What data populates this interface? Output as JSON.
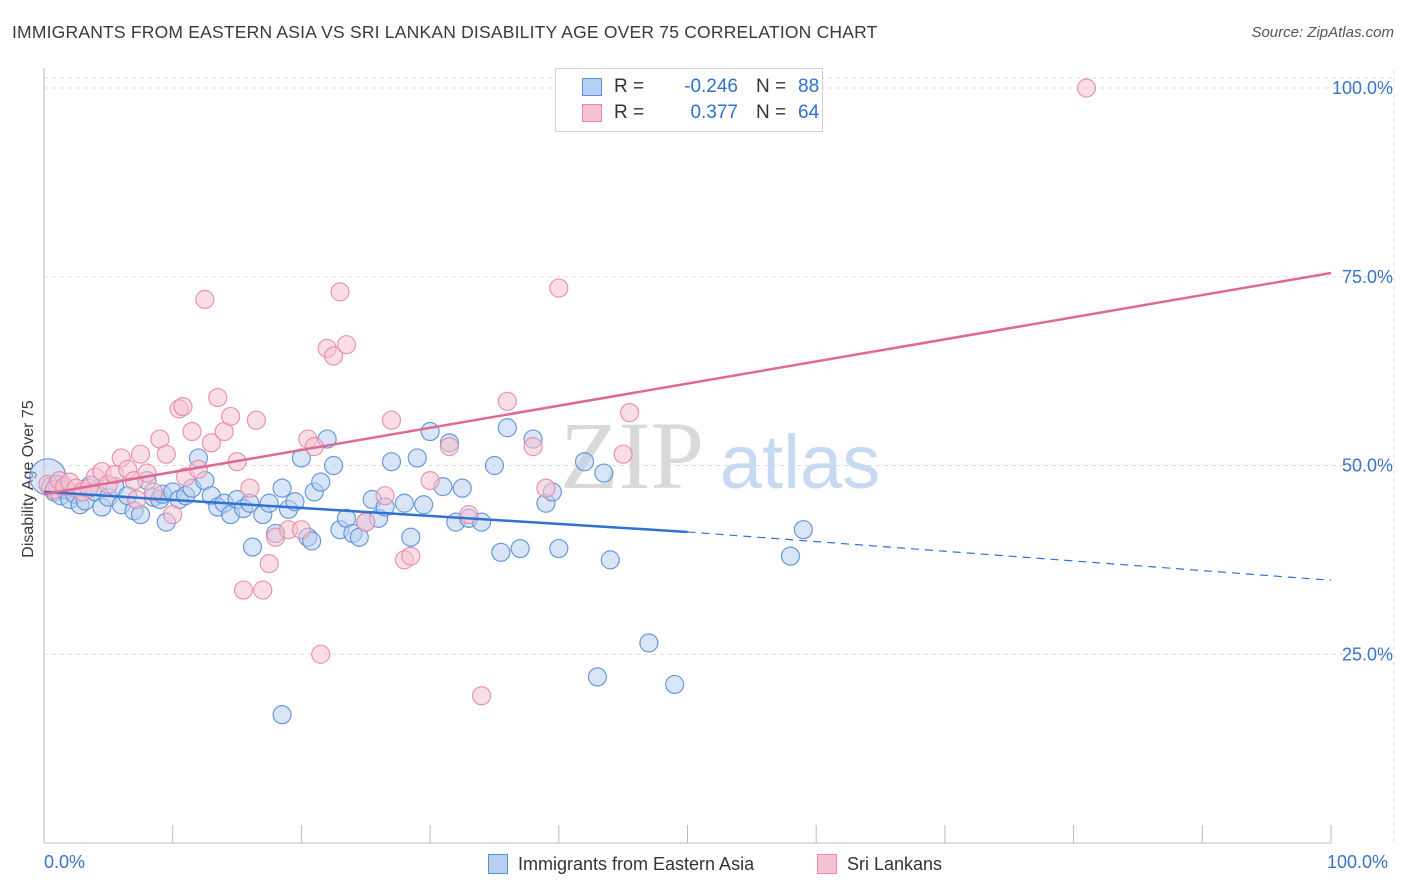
{
  "title": "IMMIGRANTS FROM EASTERN ASIA VS SRI LANKAN DISABILITY AGE OVER 75 CORRELATION CHART",
  "source": "Source: ZipAtlas.com",
  "watermark": {
    "zip": "ZIP",
    "atlas": "atlas"
  },
  "legend": {
    "r_label": "R =",
    "n_label": "N =",
    "series": [
      {
        "r": "-0.246",
        "n": "88"
      },
      {
        "r": "0.377",
        "n": "64"
      }
    ]
  },
  "bottom_legend": [
    "Immigrants from Eastern Asia",
    "Sri Lankans"
  ],
  "x_axis": {
    "min_label": "0.0%",
    "max_label": "100.0%"
  },
  "colors": {
    "blue": "#5b8fd6",
    "blue_fill": "#b8d0f0",
    "blue_line": "#2f72d4",
    "pink": "#e889a6",
    "pink_fill": "#f6c2d2",
    "pink_line": "#e0698f",
    "axis_text": "#3b73c8",
    "grid": "#dddddd"
  },
  "chart_data": {
    "type": "scatter",
    "title": "IMMIGRANTS FROM EASTERN ASIA VS SRI LANKAN DISABILITY AGE OVER 75 CORRELATION CHART",
    "xlabel": "",
    "ylabel": "Disability Age Over 75",
    "xlim": [
      0,
      100
    ],
    "ylim": [
      0,
      102
    ],
    "y_ticks": [
      25,
      50,
      75,
      100
    ],
    "y_tick_labels": [
      "25.0%",
      "50.0%",
      "75.0%",
      "100.0%"
    ],
    "series": [
      {
        "name": "Immigrants from Eastern Asia",
        "color": "blue",
        "points": [
          [
            0.3,
            48.5
          ],
          [
            0.5,
            47.2
          ],
          [
            0.8,
            46.5
          ],
          [
            1,
            47.5
          ],
          [
            1.3,
            46
          ],
          [
            1.6,
            46.8
          ],
          [
            2,
            45.5
          ],
          [
            2.4,
            46.2
          ],
          [
            2.8,
            44.8
          ],
          [
            3.2,
            45.3
          ],
          [
            3.6,
            47.4
          ],
          [
            4,
            46.5
          ],
          [
            4.5,
            44.5
          ],
          [
            5,
            45.8
          ],
          [
            5.5,
            47.2
          ],
          [
            6,
            44.8
          ],
          [
            6.5,
            46
          ],
          [
            7,
            44
          ],
          [
            7.5,
            43.5
          ],
          [
            8,
            48
          ],
          [
            8.5,
            45.8
          ],
          [
            9,
            45.5
          ],
          [
            9.2,
            46.2
          ],
          [
            9.5,
            42.5
          ],
          [
            10,
            46.5
          ],
          [
            10.5,
            45.5
          ],
          [
            11,
            46
          ],
          [
            11.5,
            47
          ],
          [
            12,
            51
          ],
          [
            12.5,
            48
          ],
          [
            13,
            46
          ],
          [
            13.5,
            44.5
          ],
          [
            14,
            45
          ],
          [
            14.5,
            43.5
          ],
          [
            15,
            45.5
          ],
          [
            15.5,
            44.3
          ],
          [
            16,
            45
          ],
          [
            16.2,
            39.2
          ],
          [
            17,
            43.5
          ],
          [
            17.5,
            45
          ],
          [
            18,
            41
          ],
          [
            18.5,
            47
          ],
          [
            19,
            44.2
          ],
          [
            19.5,
            45.2
          ],
          [
            20,
            51
          ],
          [
            21,
            46.5
          ],
          [
            21.5,
            47.8
          ],
          [
            22,
            53.5
          ],
          [
            22.5,
            50
          ],
          [
            23,
            41.5
          ],
          [
            23.5,
            43
          ],
          [
            24,
            41
          ],
          [
            24.5,
            40.5
          ],
          [
            25,
            42.5
          ],
          [
            25.5,
            45.5
          ],
          [
            26,
            43
          ],
          [
            26.5,
            44.5
          ],
          [
            27,
            50.5
          ],
          [
            28,
            45
          ],
          [
            28.5,
            40.5
          ],
          [
            29,
            51
          ],
          [
            29.5,
            44.8
          ],
          [
            30,
            54.5
          ],
          [
            31,
            47.2
          ],
          [
            31.5,
            53
          ],
          [
            32,
            42.5
          ],
          [
            32.5,
            47
          ],
          [
            33,
            43
          ],
          [
            34,
            42.5
          ],
          [
            35,
            50
          ],
          [
            35.5,
            38.5
          ],
          [
            36,
            55
          ],
          [
            37,
            39
          ],
          [
            38,
            53.5
          ],
          [
            39,
            45
          ],
          [
            39.5,
            46.5
          ],
          [
            40,
            39
          ],
          [
            42,
            50.5
          ],
          [
            43,
            22
          ],
          [
            43.5,
            49
          ],
          [
            44,
            37.5
          ],
          [
            47,
            26.5
          ],
          [
            49,
            21
          ],
          [
            58,
            38
          ],
          [
            59,
            41.5
          ],
          [
            18.5,
            17
          ],
          [
            20.5,
            40.5
          ],
          [
            20.8,
            40
          ]
        ]
      },
      {
        "name": "Sri Lankans",
        "color": "pink",
        "points": [
          [
            0.3,
            47.5
          ],
          [
            0.8,
            46.8
          ],
          [
            1.2,
            48
          ],
          [
            1.6,
            47.2
          ],
          [
            2,
            47.8
          ],
          [
            2.5,
            47
          ],
          [
            3,
            46.5
          ],
          [
            3.5,
            47
          ],
          [
            4,
            48.5
          ],
          [
            4.5,
            49.2
          ],
          [
            5,
            47.5
          ],
          [
            5.5,
            48.8
          ],
          [
            6,
            51
          ],
          [
            6.5,
            49.5
          ],
          [
            7,
            48
          ],
          [
            7.2,
            45.5
          ],
          [
            7.5,
            51.5
          ],
          [
            8,
            49
          ],
          [
            8.5,
            46.5
          ],
          [
            9,
            53.5
          ],
          [
            9.5,
            51.5
          ],
          [
            10,
            43.5
          ],
          [
            10.5,
            57.5
          ],
          [
            10.8,
            57.8
          ],
          [
            11,
            48.5
          ],
          [
            11.5,
            54.5
          ],
          [
            12,
            49.5
          ],
          [
            12.5,
            72
          ],
          [
            13,
            53
          ],
          [
            13.5,
            59
          ],
          [
            14,
            54.5
          ],
          [
            14.5,
            56.5
          ],
          [
            15,
            50.5
          ],
          [
            15.5,
            33.5
          ],
          [
            16,
            47
          ],
          [
            16.5,
            56
          ],
          [
            17,
            33.5
          ],
          [
            17.5,
            37
          ],
          [
            18,
            40.5
          ],
          [
            19,
            41.5
          ],
          [
            20,
            41.5
          ],
          [
            20.5,
            53.5
          ],
          [
            21,
            52.5
          ],
          [
            21.5,
            25
          ],
          [
            22,
            65.5
          ],
          [
            22.5,
            64.5
          ],
          [
            23,
            73
          ],
          [
            23.5,
            66
          ],
          [
            25,
            42.5
          ],
          [
            26.5,
            46
          ],
          [
            27,
            56
          ],
          [
            28,
            37.5
          ],
          [
            28.5,
            38
          ],
          [
            30,
            48
          ],
          [
            31.5,
            52.5
          ],
          [
            33,
            43.5
          ],
          [
            34,
            19.5
          ],
          [
            36,
            58.5
          ],
          [
            38,
            52.5
          ],
          [
            39,
            47
          ],
          [
            40,
            73.5
          ],
          [
            45,
            51.5
          ],
          [
            45.5,
            57
          ],
          [
            81,
            100
          ]
        ]
      }
    ],
    "trend_lines": [
      {
        "series": "Immigrants from Eastern Asia",
        "x": [
          0,
          50
        ],
        "y": [
          46.5,
          41.2
        ],
        "dashed_extension_x": [
          50,
          100
        ],
        "dashed_extension_y": [
          41.2,
          34.8
        ]
      },
      {
        "series": "Sri Lankans",
        "x": [
          0,
          100
        ],
        "y": [
          46.2,
          75.5
        ]
      }
    ]
  }
}
